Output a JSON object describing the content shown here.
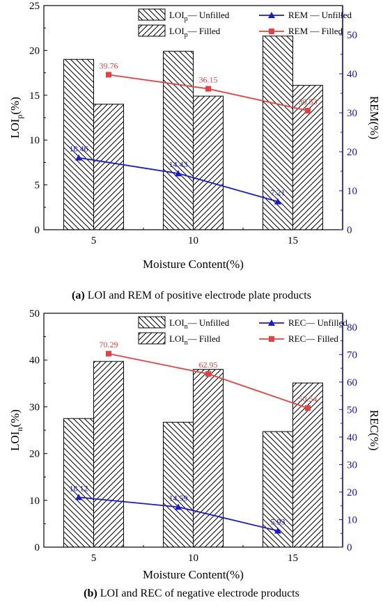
{
  "colors": {
    "axis_left": "#000000",
    "axis_right": "#1010d0",
    "line_unfilled": "#1818d8",
    "line_filled": "#e84040",
    "bar_fill": "#ffffff",
    "bar_stroke": "#000000"
  },
  "chart_data": [
    {
      "type": "bar",
      "panel": "a",
      "caption": {
        "letter": "(a)",
        "text": "LOI and REM of positive electrode plate products"
      },
      "xlabel": "Moisture Content(%)",
      "ylabel_left": {
        "main": "LOI",
        "sub": "p",
        "tail": "(%)"
      },
      "ylabel_right": "REM(%)",
      "categories": [
        "5",
        "10",
        "15"
      ],
      "ylim_left": [
        0,
        25
      ],
      "yticks_left": [
        "0",
        "5",
        "10",
        "15",
        "20",
        "25"
      ],
      "ylim_right": [
        0,
        57.5
      ],
      "yticks_right": [
        "0",
        "10",
        "20",
        "30",
        "40",
        "50"
      ],
      "bar_series": [
        {
          "name_main": "LOI",
          "name_sub": "p",
          "name_tail": "— Unfilled",
          "hatch": "back",
          "values": [
            19.0,
            19.9,
            21.6
          ]
        },
        {
          "name_main": "LOI",
          "name_sub": "p",
          "name_tail": "— Filled",
          "hatch": "fwd",
          "values": [
            14.0,
            14.9,
            16.1
          ]
        }
      ],
      "line_series": [
        {
          "name": "REM — Unfilled",
          "marker": "triangle",
          "values": [
            18.46,
            14.43,
            7.21
          ],
          "labels": [
            "18.46",
            "14.43",
            "7.21"
          ]
        },
        {
          "name": "REM — Filled",
          "marker": "square",
          "values": [
            39.76,
            36.15,
            30.53
          ],
          "labels": [
            "39.76",
            "36.15",
            "30.53"
          ]
        }
      ]
    },
    {
      "type": "bar",
      "panel": "b",
      "caption": {
        "letter": "(b)",
        "text": "LOI and REC of negative electrode products"
      },
      "xlabel": "Moisture Content(%)",
      "ylabel_left": {
        "main": "LOI",
        "sub": "n",
        "tail": "(%)"
      },
      "ylabel_right": "REC(%)",
      "categories": [
        "5",
        "10",
        "15"
      ],
      "ylim_left": [
        0,
        50
      ],
      "yticks_left": [
        "0",
        "10",
        "20",
        "30",
        "40",
        "50"
      ],
      "ylim_right": [
        0,
        85
      ],
      "yticks_right": [
        "0",
        "10",
        "20",
        "30",
        "40",
        "50",
        "60",
        "70",
        "80"
      ],
      "bar_series": [
        {
          "name_main": "LOI",
          "name_sub": "n",
          "name_tail": "— Unfilled",
          "hatch": "back",
          "values": [
            27.5,
            26.7,
            24.7
          ]
        },
        {
          "name_main": "LOI",
          "name_sub": "n",
          "name_tail": "— Filled",
          "hatch": "fwd",
          "values": [
            39.7,
            38.0,
            35.1
          ]
        }
      ],
      "line_series": [
        {
          "name": "REC— Unfilled",
          "marker": "triangle",
          "values": [
            18.12,
            14.59,
            5.93
          ],
          "labels": [
            "18.12",
            "14.59",
            "5.93"
          ]
        },
        {
          "name": "REC— Filled",
          "marker": "square",
          "values": [
            70.29,
            62.95,
            50.54
          ],
          "labels": [
            "70.29",
            "62.95",
            "50.54"
          ]
        }
      ]
    }
  ]
}
